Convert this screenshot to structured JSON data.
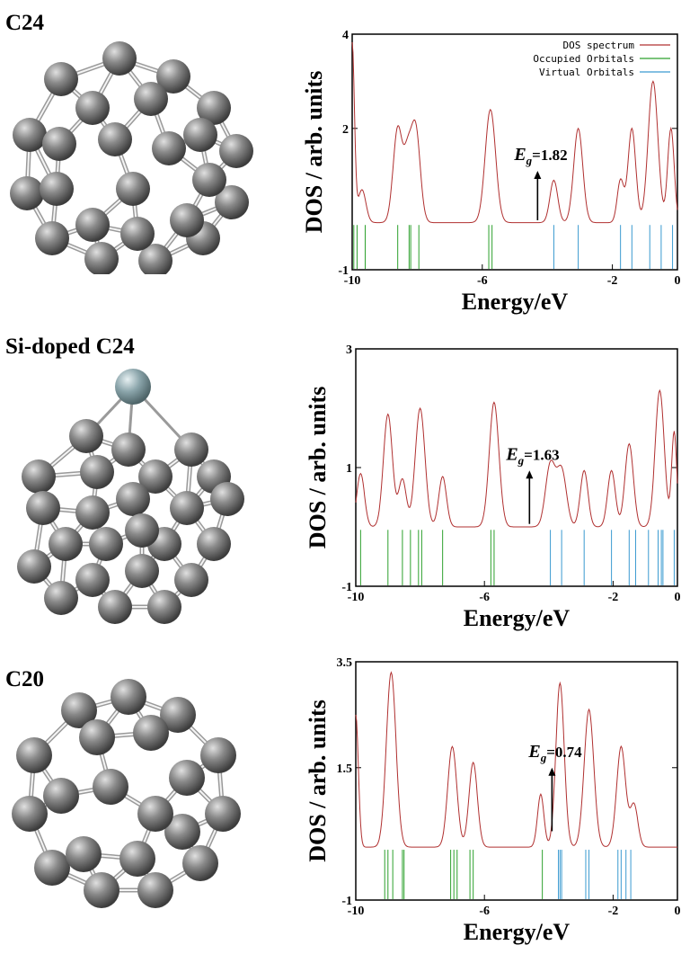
{
  "panels": [
    {
      "molecule_label": "C24",
      "molecule": {
        "atoms": 24,
        "dopant": "",
        "atom_color": "#8a8a8a",
        "dopant_color": ""
      },
      "chart": {
        "type": "line",
        "xlabel": "Energy/eV",
        "ylabel": "DOS / arb. units",
        "xlim": [
          -10,
          0
        ],
        "ylim": [
          -1,
          4
        ],
        "xticks": [
          "-10",
          "-6",
          "-2",
          "0"
        ],
        "xtick_values": [
          -10,
          -6,
          -2,
          0
        ],
        "yticks": [
          "4",
          "2",
          "-1"
        ],
        "ytick_values": [
          4,
          2,
          -1
        ],
        "legend": [
          "DOS spectrum",
          "Occupied Orbitals",
          "Virtual Orbitals"
        ],
        "legend_position": "top-right",
        "gap_label": "1.82",
        "gap_arrow": {
          "x": -4.3,
          "y_from": 0.05,
          "y_to": 1.1
        },
        "baseline": 0,
        "dos_peaks": [
          [
            -10.0,
            3.8,
            0.07
          ],
          [
            -9.7,
            0.7,
            0.12
          ],
          [
            -8.6,
            2.0,
            0.14
          ],
          [
            -8.3,
            1.2,
            0.12
          ],
          [
            -8.05,
            2.0,
            0.14
          ],
          [
            -5.75,
            2.4,
            0.16
          ],
          [
            -3.8,
            0.9,
            0.12
          ],
          [
            -3.05,
            2.0,
            0.14
          ],
          [
            -1.75,
            0.9,
            0.1
          ],
          [
            -1.4,
            2.0,
            0.12
          ],
          [
            -0.75,
            3.0,
            0.15
          ],
          [
            -0.2,
            2.0,
            0.1
          ]
        ],
        "occupied": [
          -9.95,
          -9.85,
          -9.6,
          -8.6,
          -8.25,
          -8.2,
          -7.95,
          -5.8,
          -5.7
        ],
        "virtual": [
          -3.8,
          -3.05,
          -1.75,
          -1.4,
          -0.85,
          -0.5,
          -0.15
        ]
      }
    },
    {
      "molecule_label": "Si-doped C24",
      "molecule": {
        "atoms": 24,
        "dopant": "Si",
        "atom_color": "#8a8a8a",
        "dopant_color": "#8aa4aa"
      },
      "chart": {
        "type": "line",
        "xlabel": "Energy/eV",
        "ylabel": "DOS / arb. units",
        "xlim": [
          -10,
          0
        ],
        "ylim": [
          -1,
          3
        ],
        "xticks": [
          "-10",
          "-6",
          "-2",
          "0"
        ],
        "xtick_values": [
          -10,
          -6,
          -2,
          0
        ],
        "yticks": [
          "3",
          "1",
          "-1"
        ],
        "ytick_values": [
          3,
          1,
          -1
        ],
        "legend": [],
        "legend_position": "",
        "gap_label": "1.63",
        "gap_arrow": {
          "x": -4.6,
          "y_from": 0.05,
          "y_to": 0.95
        },
        "baseline": 0,
        "dos_peaks": [
          [
            -9.85,
            0.9,
            0.12
          ],
          [
            -9.0,
            1.9,
            0.14
          ],
          [
            -8.55,
            0.8,
            0.12
          ],
          [
            -8.0,
            2.0,
            0.15
          ],
          [
            -7.3,
            0.85,
            0.12
          ],
          [
            -5.7,
            2.1,
            0.15
          ],
          [
            -3.95,
            1.05,
            0.15
          ],
          [
            -3.6,
            0.95,
            0.15
          ],
          [
            -2.9,
            0.95,
            0.12
          ],
          [
            -2.05,
            0.95,
            0.12
          ],
          [
            -1.5,
            1.4,
            0.13
          ],
          [
            -0.55,
            2.3,
            0.14
          ],
          [
            -0.1,
            1.6,
            0.08
          ]
        ],
        "occupied": [
          -9.85,
          -9.0,
          -8.55,
          -8.3,
          -8.05,
          -7.95,
          -7.3,
          -5.8,
          -5.7
        ],
        "virtual": [
          -3.95,
          -3.6,
          -2.9,
          -2.05,
          -1.5,
          -1.3,
          -0.9,
          -0.6,
          -0.5,
          -0.45,
          -0.1
        ]
      }
    },
    {
      "molecule_label": "C20",
      "molecule": {
        "atoms": 20,
        "dopant": "",
        "atom_color": "#8a8a8a",
        "dopant_color": ""
      },
      "chart": {
        "type": "line",
        "xlabel": "Energy/eV",
        "ylabel": "DOS / arb. units",
        "xlim": [
          -10,
          0
        ],
        "ylim": [
          -1,
          3.5
        ],
        "xticks": [
          "-10",
          "-6",
          "-2",
          "0"
        ],
        "xtick_values": [
          -10,
          -6,
          -2,
          0
        ],
        "yticks": [
          "3.5",
          "1.5",
          "-1"
        ],
        "ytick_values": [
          3.5,
          1.5,
          -1
        ],
        "legend": [],
        "legend_position": "",
        "gap_label": "0.74",
        "gap_arrow": {
          "x": -3.9,
          "y_from": 0.3,
          "y_to": 1.5
        },
        "baseline": 0,
        "dos_peaks": [
          [
            -10.0,
            2.5,
            0.08
          ],
          [
            -8.9,
            3.3,
            0.15
          ],
          [
            -7.0,
            1.9,
            0.14
          ],
          [
            -6.35,
            1.6,
            0.13
          ],
          [
            -4.25,
            1.0,
            0.1
          ],
          [
            -3.65,
            3.1,
            0.13
          ],
          [
            -2.75,
            2.6,
            0.15
          ],
          [
            -1.75,
            1.9,
            0.14
          ],
          [
            -1.35,
            0.8,
            0.12
          ]
        ],
        "occupied": [
          -9.1,
          -9.0,
          -8.85,
          -8.55,
          -8.5,
          -7.05,
          -6.95,
          -6.85,
          -6.45,
          -6.35,
          -4.2
        ],
        "virtual": [
          -3.7,
          -3.65,
          -3.6,
          -2.85,
          -2.75,
          -1.85,
          -1.75,
          -1.6,
          -1.45
        ]
      }
    }
  ],
  "colors": {
    "dos": "#b03030",
    "occupied": "#2ca02c",
    "virtual": "#3a9ad0",
    "axis": "#000000"
  }
}
